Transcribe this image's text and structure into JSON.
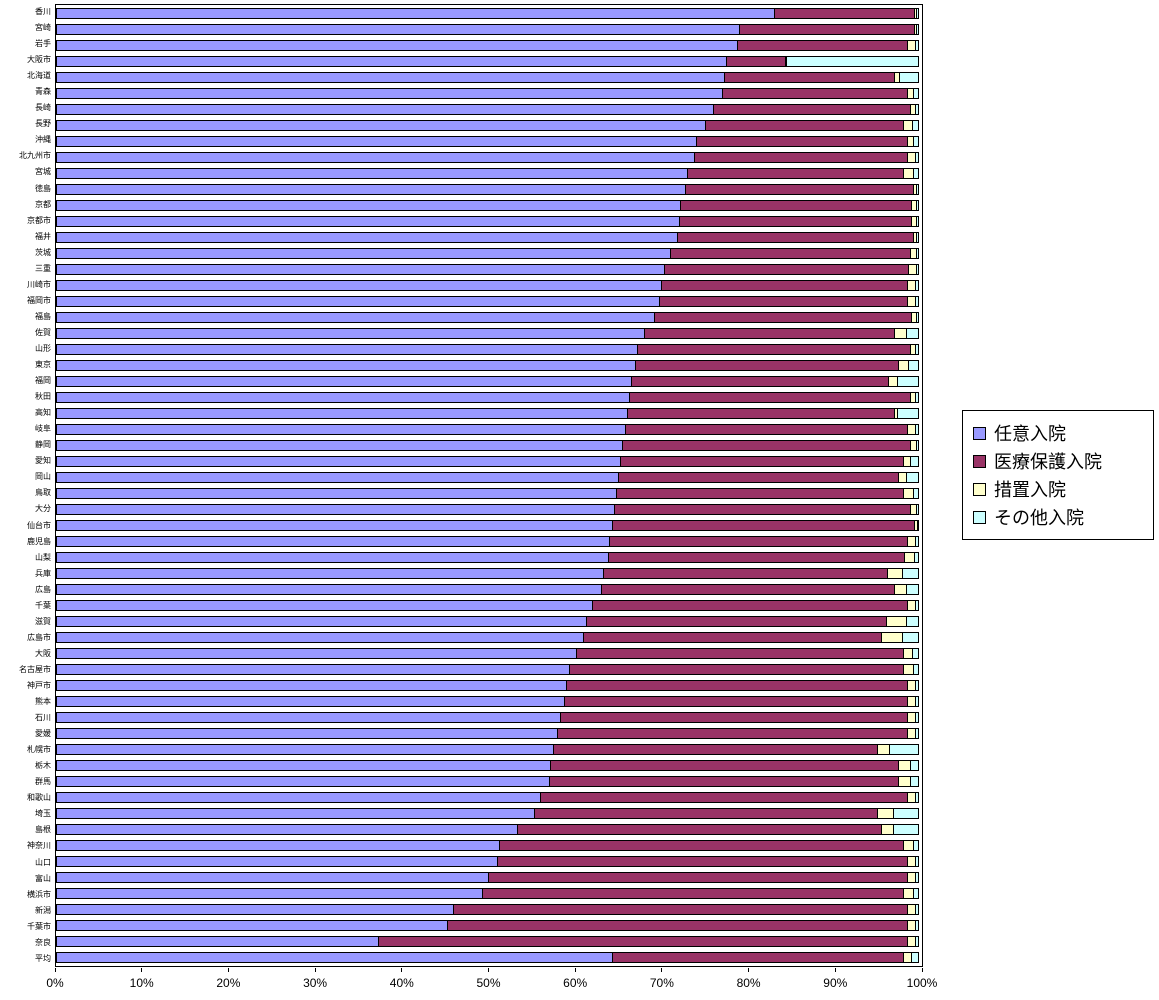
{
  "chart_data": {
    "type": "bar",
    "stacked": true,
    "percent_stacked": true,
    "orientation": "horizontal",
    "title": "",
    "xlabel": "",
    "ylabel": "",
    "xlim": [
      0,
      100
    ],
    "x_ticks": [
      "0%",
      "10%",
      "20%",
      "30%",
      "40%",
      "50%",
      "60%",
      "70%",
      "80%",
      "90%",
      "100%"
    ],
    "grid": false,
    "legend_position": "right",
    "series_names": [
      "任意入院",
      "医療保護入院",
      "措置入院",
      "その他入院"
    ],
    "series_keys": [
      "voluntary-admission",
      "medical-protection-admission",
      "ordered-admission",
      "other-admission"
    ],
    "colors": [
      "#9999FF",
      "#993366",
      "#FFFFCC",
      "#CCFFFF"
    ],
    "categories": [
      "香川",
      "宮崎",
      "岩手",
      "大阪市",
      "北海道",
      "青森",
      "長崎",
      "長野",
      "沖縄",
      "北九州市",
      "宮城",
      "徳島",
      "京都",
      "京都市",
      "福井",
      "茨城",
      "三重",
      "川崎市",
      "福岡市",
      "福島",
      "佐賀",
      "山形",
      "東京",
      "福岡",
      "秋田",
      "高知",
      "岐阜",
      "静岡",
      "愛知",
      "岡山",
      "鳥取",
      "大分",
      "仙台市",
      "鹿児島",
      "山梨",
      "兵庫",
      "広島",
      "千葉",
      "滋賀",
      "広島市",
      "大阪",
      "名古屋市",
      "神戸市",
      "熊本",
      "石川",
      "愛媛",
      "札幌市",
      "栃木",
      "群馬",
      "和歌山",
      "埼玉",
      "島根",
      "神奈川",
      "山口",
      "富山",
      "横浜市",
      "新潟",
      "千葉市",
      "奈良",
      "平均"
    ],
    "rows": [
      [
        83.0,
        16.3,
        0.4,
        0.3
      ],
      [
        79.0,
        20.3,
        0.4,
        0.3
      ],
      [
        78.7,
        19.8,
        1.0,
        0.5
      ],
      [
        77.5,
        6.9,
        0.3,
        15.3
      ],
      [
        77.2,
        19.8,
        0.7,
        2.3
      ],
      [
        77.0,
        21.5,
        0.8,
        0.7
      ],
      [
        76.0,
        22.8,
        0.7,
        0.5
      ],
      [
        75.0,
        23.0,
        1.2,
        0.8
      ],
      [
        74.0,
        24.5,
        0.8,
        0.7
      ],
      [
        73.8,
        24.7,
        1.0,
        0.5
      ],
      [
        73.0,
        25.0,
        1.3,
        0.7
      ],
      [
        72.8,
        26.4,
        0.5,
        0.3
      ],
      [
        72.2,
        26.8,
        0.6,
        0.4
      ],
      [
        72.0,
        27.0,
        0.6,
        0.4
      ],
      [
        71.8,
        27.4,
        0.5,
        0.3
      ],
      [
        71.0,
        27.8,
        0.8,
        0.4
      ],
      [
        70.3,
        28.3,
        1.0,
        0.4
      ],
      [
        70.0,
        28.5,
        1.0,
        0.5
      ],
      [
        69.8,
        28.7,
        1.0,
        0.5
      ],
      [
        69.2,
        29.8,
        0.6,
        0.4
      ],
      [
        68.0,
        29.0,
        1.5,
        1.5
      ],
      [
        67.2,
        31.6,
        0.7,
        0.5
      ],
      [
        67.0,
        30.5,
        1.2,
        1.3
      ],
      [
        66.5,
        29.8,
        1.2,
        2.5
      ],
      [
        66.3,
        32.5,
        0.7,
        0.5
      ],
      [
        66.0,
        31.0,
        0.5,
        2.5
      ],
      [
        65.8,
        32.7,
        1.0,
        0.5
      ],
      [
        65.5,
        33.3,
        0.8,
        0.4
      ],
      [
        65.2,
        32.8,
        1.0,
        1.0
      ],
      [
        65.0,
        32.5,
        1.0,
        1.5
      ],
      [
        64.8,
        33.2,
        1.3,
        0.7
      ],
      [
        64.6,
        34.2,
        0.8,
        0.4
      ],
      [
        64.3,
        35.0,
        0.5,
        0.2
      ],
      [
        64.0,
        34.5,
        1.0,
        0.5
      ],
      [
        63.8,
        34.4,
        1.2,
        0.6
      ],
      [
        63.3,
        32.9,
        1.8,
        2.0
      ],
      [
        63.0,
        34.0,
        1.5,
        1.5
      ],
      [
        62.0,
        36.5,
        1.0,
        0.5
      ],
      [
        61.3,
        34.8,
        2.4,
        1.5
      ],
      [
        61.0,
        34.5,
        2.5,
        2.0
      ],
      [
        60.2,
        37.8,
        1.2,
        0.8
      ],
      [
        59.3,
        38.7,
        1.3,
        0.7
      ],
      [
        59.0,
        39.5,
        1.0,
        0.5
      ],
      [
        58.8,
        39.7,
        1.0,
        0.5
      ],
      [
        58.3,
        40.2,
        1.0,
        0.5
      ],
      [
        58.0,
        40.5,
        1.0,
        0.5
      ],
      [
        57.5,
        37.5,
        1.5,
        3.5
      ],
      [
        57.2,
        40.3,
        1.5,
        1.0
      ],
      [
        57.0,
        40.5,
        1.5,
        1.0
      ],
      [
        56.0,
        42.5,
        1.0,
        0.5
      ],
      [
        55.3,
        39.7,
        2.0,
        3.0
      ],
      [
        53.3,
        42.2,
        1.5,
        3.0
      ],
      [
        51.3,
        46.7,
        1.3,
        0.7
      ],
      [
        51.0,
        47.5,
        1.0,
        0.5
      ],
      [
        50.0,
        48.5,
        1.0,
        0.5
      ],
      [
        49.3,
        48.7,
        1.3,
        0.7
      ],
      [
        46.0,
        52.5,
        1.0,
        0.5
      ],
      [
        45.3,
        53.2,
        1.0,
        0.5
      ],
      [
        37.3,
        61.2,
        1.0,
        0.5
      ],
      [
        64.3,
        33.7,
        1.1,
        0.9
      ]
    ]
  }
}
